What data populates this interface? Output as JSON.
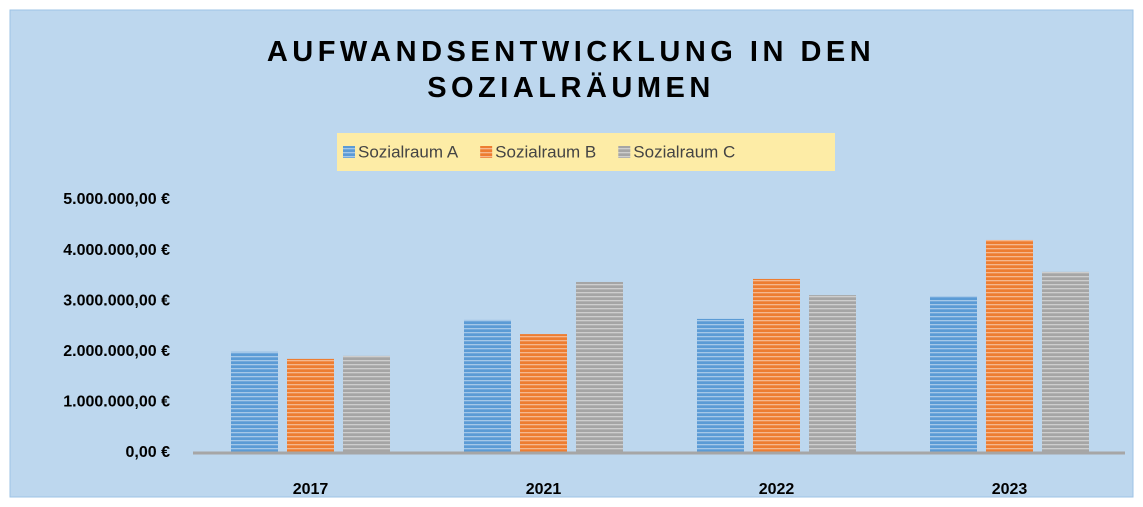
{
  "chart_data": {
    "type": "bar",
    "title": "AUFWANDSENTWICKLUNG IN DEN SOZIALRÄUMEN",
    "categories": [
      "2017",
      "2021",
      "2022",
      "2023"
    ],
    "series": [
      {
        "name": "Sozialraum A",
        "color": "#5b9bd5",
        "values": [
          2000000,
          2630000,
          2650000,
          3100000
        ]
      },
      {
        "name": "Sozialraum B",
        "color": "#ed7d31",
        "values": [
          1860000,
          2350000,
          3440000,
          4210000
        ]
      },
      {
        "name": "Sozialraum C",
        "color": "#a5a5a5",
        "values": [
          1920000,
          3380000,
          3120000,
          3580000
        ]
      }
    ],
    "ylim": [
      0,
      5000000
    ],
    "yticks": [
      {
        "value": 0,
        "label": "0,00 €"
      },
      {
        "value": 1000000,
        "label": "1.000.000,00 €"
      },
      {
        "value": 2000000,
        "label": "2.000.000,00 €"
      },
      {
        "value": 3000000,
        "label": "3.000.000,00 €"
      },
      {
        "value": 4000000,
        "label": "4.000.000,00 €"
      },
      {
        "value": 5000000,
        "label": "5.000.000,00 €"
      }
    ],
    "grid": false,
    "legend": "top"
  }
}
